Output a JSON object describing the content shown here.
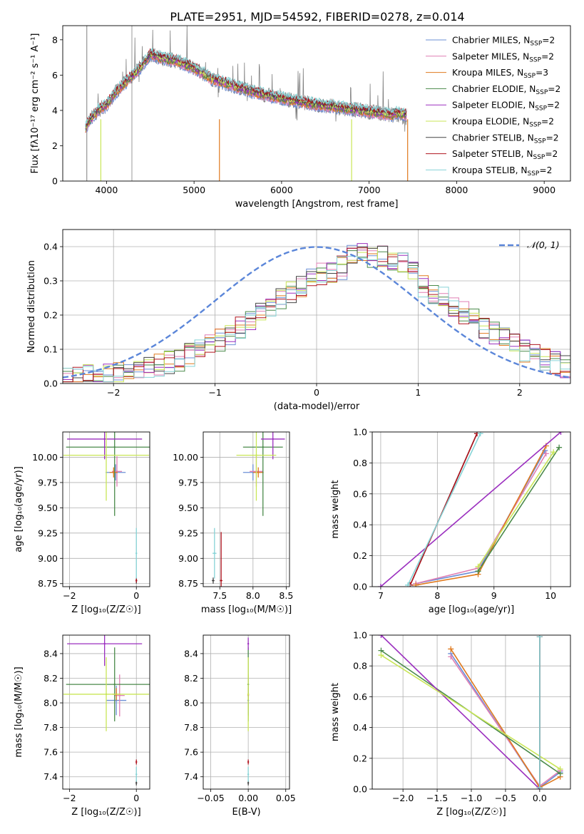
{
  "title": "PLATE=2951, MJD=54592, FIBERID=0278, z=0.014",
  "colors": {
    "Chabrier MILES": "#6b8fd6",
    "Salpeter MILES": "#e07fb4",
    "Kroupa MILES": "#e07a1f",
    "Chabrier ELODIE": "#4a8a4a",
    "Salpeter ELODIE": "#9b2fbf",
    "Kroupa ELODIE": "#c9e657",
    "Chabrier STELIB": "#444444",
    "Salpeter STELIB": "#b0141e",
    "Kroupa STELIB": "#86d3d6"
  },
  "legend_spectrum": [
    {
      "label": "Chabrier MILES, N",
      "sub": "SSP",
      "suffix": "=2",
      "color": "#6b8fd6"
    },
    {
      "label": "Salpeter MILES, N",
      "sub": "SSP",
      "suffix": "=2",
      "color": "#e07fb4"
    },
    {
      "label": "Kroupa MILES, N",
      "sub": "SSP",
      "suffix": "=3",
      "color": "#e07a1f"
    },
    {
      "label": "Chabrier ELODIE, N",
      "sub": "SSP",
      "suffix": "=2",
      "color": "#4a8a4a"
    },
    {
      "label": "Salpeter ELODIE, N",
      "sub": "SSP",
      "suffix": "=2",
      "color": "#9b2fbf"
    },
    {
      "label": "Kroupa ELODIE, N",
      "sub": "SSP",
      "suffix": "=2",
      "color": "#c9e657"
    },
    {
      "label": "Chabrier STELIB, N",
      "sub": "SSP",
      "suffix": "=2",
      "color": "#444444"
    },
    {
      "label": "Salpeter STELIB, N",
      "sub": "SSP",
      "suffix": "=2",
      "color": "#b0141e"
    },
    {
      "label": "Kroupa STELIB, N",
      "sub": "SSP",
      "suffix": "=2",
      "color": "#86d3d6"
    }
  ],
  "chart_data": [
    {
      "id": "spectrum",
      "type": "line",
      "xlabel": "wavelength [Angstrom, rest frame]",
      "ylabel": "Flux [fλ10⁻¹⁷ erg cm⁻² s⁻¹ A⁻¹]",
      "xlim": [
        3500,
        9300
      ],
      "ylim": [
        0,
        8.8
      ],
      "xticks": [
        4000,
        5000,
        6000,
        7000,
        8000,
        9000
      ],
      "yticks": [
        0,
        2,
        4,
        6,
        8
      ],
      "data_color": "#808080",
      "continuum": {
        "x": [
          3760,
          3800,
          3900,
          4000,
          4100,
          4200,
          4300,
          4400,
          4500,
          4600,
          4800,
          5000,
          5200,
          5500,
          5800,
          6000,
          6300,
          6600,
          6900,
          7200,
          7430
        ],
        "y": [
          3.0,
          3.4,
          4.0,
          4.3,
          5.0,
          5.5,
          6.0,
          6.5,
          7.2,
          7.0,
          6.8,
          6.4,
          5.8,
          5.3,
          4.9,
          4.7,
          4.4,
          4.2,
          4.0,
          3.8,
          3.6
        ]
      }
    },
    {
      "id": "residuals",
      "type": "step",
      "xlabel": "(data-model)/error",
      "ylabel": "Normed distribution",
      "xlim": [
        -2.5,
        2.5
      ],
      "ylim": [
        0,
        0.45
      ],
      "xticks": [
        -2,
        -1,
        0,
        1,
        2
      ],
      "yticks": [
        0.0,
        0.1,
        0.2,
        0.3,
        0.4
      ],
      "gaussian_label": "𝒩(0, 1)",
      "gaussian_color": "#5b86d9"
    },
    {
      "id": "age_vs_Z",
      "type": "errorbar",
      "xlabel": "Z [log₁₀(Z/Z☉)]",
      "ylabel": "age  [log₁₀(age/yr)]",
      "xlim": [
        -2.2,
        0.4
      ],
      "ylim": [
        8.72,
        10.25
      ],
      "xticks": [
        -2,
        0
      ],
      "yticks": [
        8.75,
        9.0,
        9.25,
        9.5,
        9.75,
        10.0
      ],
      "points": [
        {
          "model": "Chabrier MILES",
          "x": -0.62,
          "y": 9.85,
          "xerr": 0.3,
          "yerr": 0.08
        },
        {
          "model": "Salpeter MILES",
          "x": -0.58,
          "y": 9.86,
          "xerr": 0.15,
          "yerr": 0.15
        },
        {
          "model": "Kroupa MILES",
          "x": -0.68,
          "y": 9.85,
          "xerr": 0.12,
          "yerr": 0.05
        },
        {
          "model": "Chabrier ELODIE",
          "x": -0.65,
          "y": 10.1,
          "xerr": 1.45,
          "yerr": 0.68
        },
        {
          "model": "Salpeter ELODIE",
          "x": -0.95,
          "y": 10.18,
          "xerr": 1.12,
          "yerr": 0.2
        },
        {
          "model": "Kroupa ELODIE",
          "x": -0.9,
          "y": 10.02,
          "xerr": 1.28,
          "yerr": 0.45
        },
        {
          "model": "Chabrier STELIB",
          "x": 0.0,
          "y": 8.78,
          "xerr": 0.02,
          "yerr": 0.03
        },
        {
          "model": "Salpeter STELIB",
          "x": 0.0,
          "y": 8.78,
          "xerr": 0.02,
          "yerr": 0.02
        },
        {
          "model": "Kroupa STELIB",
          "x": 0.0,
          "y": 9.05,
          "xerr": 0.02,
          "yerr": 0.25
        }
      ]
    },
    {
      "id": "age_vs_mass",
      "type": "errorbar",
      "xlabel": "mass [log₁₀(M/M☉)]",
      "ylabel": "",
      "xlim": [
        7.25,
        8.55
      ],
      "ylim": [
        8.72,
        10.25
      ],
      "xticks": [
        7.5,
        8.0,
        8.5
      ],
      "yticks": [
        8.75,
        9.0,
        9.25,
        9.5,
        9.75,
        10.0
      ],
      "points": [
        {
          "model": "Chabrier MILES",
          "x": 8.0,
          "y": 9.85,
          "xerr": 0.15,
          "yerr": 0.08
        },
        {
          "model": "Salpeter MILES",
          "x": 8.05,
          "y": 9.86,
          "xerr": 0.1,
          "yerr": 0.15
        },
        {
          "model": "Kroupa MILES",
          "x": 8.08,
          "y": 9.85,
          "xerr": 0.08,
          "yerr": 0.05
        },
        {
          "model": "Chabrier ELODIE",
          "x": 8.15,
          "y": 10.1,
          "xerr": 0.3,
          "yerr": 0.68
        },
        {
          "model": "Salpeter ELODIE",
          "x": 8.3,
          "y": 10.18,
          "xerr": 0.18,
          "yerr": 0.2
        },
        {
          "model": "Kroupa ELODIE",
          "x": 8.05,
          "y": 10.02,
          "xerr": 0.3,
          "yerr": 0.45
        },
        {
          "model": "Chabrier STELIB",
          "x": 7.4,
          "y": 8.78,
          "xerr": 0.02,
          "yerr": 0.03
        },
        {
          "model": "Salpeter STELIB",
          "x": 7.52,
          "y": 8.78,
          "xerr": 0.02,
          "yerr": 0.48
        },
        {
          "model": "Kroupa STELIB",
          "x": 7.42,
          "y": 9.05,
          "xerr": 0.03,
          "yerr": 0.25
        }
      ]
    },
    {
      "id": "weight_vs_age",
      "type": "line",
      "xlabel": "age  [log₁₀(age/yr)]",
      "ylabel": "mass weight",
      "xlim": [
        6.85,
        10.35
      ],
      "ylim": [
        0.0,
        1.0
      ],
      "xticks": [
        7,
        8,
        9,
        10
      ],
      "yticks": [
        0.0,
        0.2,
        0.4,
        0.6,
        0.8,
        1.0
      ],
      "series": [
        {
          "name": "Chabrier MILES",
          "x": [
            7.62,
            8.72,
            9.9
          ],
          "y": [
            0.02,
            0.1,
            0.88
          ]
        },
        {
          "name": "Salpeter MILES",
          "x": [
            7.62,
            8.72,
            9.92
          ],
          "y": [
            0.02,
            0.12,
            0.86
          ]
        },
        {
          "name": "Kroupa MILES",
          "x": [
            7.62,
            8.72,
            9.92
          ],
          "y": [
            0.01,
            0.08,
            0.91
          ]
        },
        {
          "name": "Chabrier ELODIE",
          "x": [
            8.72,
            10.15
          ],
          "y": [
            0.1,
            0.9
          ]
        },
        {
          "name": "Salpeter ELODIE",
          "x": [
            7.0,
            10.18
          ],
          "y": [
            0.0,
            1.0
          ]
        },
        {
          "name": "Kroupa ELODIE",
          "x": [
            8.72,
            10.05
          ],
          "y": [
            0.13,
            0.87
          ]
        },
        {
          "name": "Chabrier STELIB",
          "x": [
            7.52,
            8.7
          ],
          "y": [
            0.01,
            0.99
          ]
        },
        {
          "name": "Salpeter STELIB",
          "x": [
            7.52,
            8.7
          ],
          "y": [
            0.01,
            0.99
          ]
        },
        {
          "name": "Kroupa STELIB",
          "x": [
            7.48,
            8.76
          ],
          "y": [
            0.01,
            0.99
          ]
        }
      ]
    },
    {
      "id": "mass_vs_Z",
      "type": "errorbar",
      "xlabel": "Z [log₁₀(Z/Z☉)]",
      "ylabel": "mass [log₁₀(M/M☉)]",
      "xlim": [
        -2.2,
        0.4
      ],
      "ylim": [
        7.3,
        8.55
      ],
      "xticks": [
        -2,
        0
      ],
      "yticks": [
        7.4,
        7.6,
        7.8,
        8.0,
        8.2,
        8.4
      ],
      "points": [
        {
          "model": "Chabrier MILES",
          "x": -0.6,
          "y": 8.02,
          "xerr": 0.3,
          "yerr": 0.12
        },
        {
          "model": "Salpeter MILES",
          "x": -0.5,
          "y": 8.06,
          "xerr": 0.15,
          "yerr": 0.17
        },
        {
          "model": "Kroupa MILES",
          "x": -0.6,
          "y": 8.07,
          "xerr": 0.12,
          "yerr": 0.05
        },
        {
          "model": "Chabrier ELODIE",
          "x": -0.65,
          "y": 8.15,
          "xerr": 1.45,
          "yerr": 0.3
        },
        {
          "model": "Salpeter ELODIE",
          "x": -0.95,
          "y": 8.48,
          "xerr": 1.12,
          "yerr": 0.18
        },
        {
          "model": "Kroupa ELODIE",
          "x": -0.9,
          "y": 8.07,
          "xerr": 1.28,
          "yerr": 0.3
        },
        {
          "model": "Chabrier STELIB",
          "x": 0.0,
          "y": 7.35,
          "xerr": 0.02,
          "yerr": 0.02
        },
        {
          "model": "Salpeter STELIB",
          "x": 0.0,
          "y": 7.52,
          "xerr": 0.02,
          "yerr": 0.02
        },
        {
          "model": "Kroupa STELIB",
          "x": 0.0,
          "y": 7.42,
          "xerr": 0.02,
          "yerr": 0.06
        }
      ]
    },
    {
      "id": "mass_vs_ebv",
      "type": "errorbar",
      "xlabel": "E(B-V)",
      "ylabel": "",
      "xlim": [
        -0.06,
        0.055
      ],
      "ylim": [
        7.3,
        8.55
      ],
      "xticks": [
        -0.05,
        0.0,
        0.05
      ],
      "xtick_labels": [
        "−0.05",
        "0.00",
        "0.05"
      ],
      "yticks": [
        7.4,
        7.6,
        7.8,
        8.0,
        8.2,
        8.4
      ],
      "points": [
        {
          "model": "Chabrier MILES",
          "x": 0.0,
          "y": 8.02,
          "xerr": 0.0,
          "yerr": 0.12
        },
        {
          "model": "Salpeter MILES",
          "x": 0.0,
          "y": 8.06,
          "xerr": 0.0,
          "yerr": 0.17
        },
        {
          "model": "Kroupa MILES",
          "x": 0.0,
          "y": 8.07,
          "xerr": 0.0,
          "yerr": 0.05
        },
        {
          "model": "Chabrier ELODIE",
          "x": 0.0,
          "y": 8.15,
          "xerr": 0.0,
          "yerr": 0.3
        },
        {
          "model": "Salpeter ELODIE",
          "x": 0.0,
          "y": 8.48,
          "xerr": 0.0,
          "yerr": 0.05
        },
        {
          "model": "Kroupa ELODIE",
          "x": 0.0,
          "y": 8.07,
          "xerr": 0.0,
          "yerr": 0.3
        },
        {
          "model": "Chabrier STELIB",
          "x": 0.0,
          "y": 7.35,
          "xerr": 0.0,
          "yerr": 0.02
        },
        {
          "model": "Salpeter STELIB",
          "x": 0.0,
          "y": 7.52,
          "xerr": 0.0,
          "yerr": 0.02
        },
        {
          "model": "Kroupa STELIB",
          "x": 0.0,
          "y": 7.42,
          "xerr": 0.0,
          "yerr": 0.06
        }
      ]
    },
    {
      "id": "weight_vs_Z",
      "type": "line",
      "xlabel": "Z [log₁₀(Z/Z☉)]",
      "ylabel": "mass weight",
      "xlim": [
        -2.45,
        0.45
      ],
      "ylim": [
        0.0,
        1.0
      ],
      "xticks": [
        -2.0,
        -1.5,
        -1.0,
        -0.5,
        0.0
      ],
      "xtick_labels": [
        "−2.0",
        "−1.5",
        "−1.0",
        "−0.5",
        "0.0"
      ],
      "yticks": [
        0.0,
        0.2,
        0.4,
        0.6,
        0.8,
        1.0
      ],
      "series": [
        {
          "name": "Chabrier MILES",
          "x": [
            -1.3,
            0.0,
            0.3
          ],
          "y": [
            0.88,
            0.01,
            0.11
          ]
        },
        {
          "name": "Salpeter MILES",
          "x": [
            -1.3,
            0.0,
            0.3
          ],
          "y": [
            0.86,
            0.02,
            0.12
          ]
        },
        {
          "name": "Kroupa MILES",
          "x": [
            -1.3,
            0.0,
            0.3
          ],
          "y": [
            0.91,
            0.01,
            0.08
          ]
        },
        {
          "name": "Chabrier ELODIE",
          "x": [
            -2.32,
            0.3
          ],
          "y": [
            0.9,
            0.1
          ]
        },
        {
          "name": "Salpeter ELODIE",
          "x": [
            -2.32,
            0.0
          ],
          "y": [
            1.0,
            0.0
          ]
        },
        {
          "name": "Kroupa ELODIE",
          "x": [
            -2.32,
            0.3
          ],
          "y": [
            0.87,
            0.13
          ]
        },
        {
          "name": "Chabrier STELIB",
          "x": [
            0.0,
            0.0
          ],
          "y": [
            0.01,
            0.99
          ]
        },
        {
          "name": "Salpeter STELIB",
          "x": [
            0.0,
            0.0
          ],
          "y": [
            0.01,
            0.99
          ]
        },
        {
          "name": "Kroupa STELIB",
          "x": [
            0.0,
            0.0
          ],
          "y": [
            0.01,
            0.99
          ]
        }
      ]
    }
  ]
}
